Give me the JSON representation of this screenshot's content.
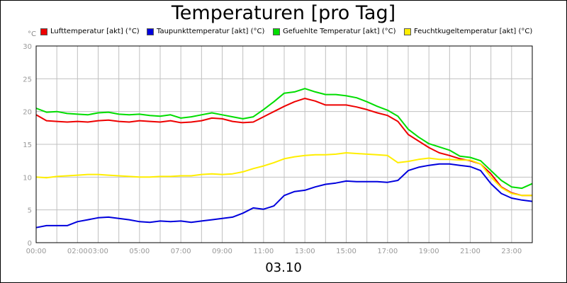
{
  "title": "Temperaturen [pro Tag]",
  "date_label": "03.10",
  "unit_label": "°C",
  "chart_data": {
    "type": "line",
    "title": "Temperaturen [pro Tag]",
    "ylabel": "°C",
    "xlabel": "03.10",
    "ylim": [
      0,
      30
    ],
    "xlim_hours": [
      0,
      24
    ],
    "grid": true,
    "legend_position": "top",
    "y_ticks": [
      "0",
      "5",
      "10",
      "15",
      "20",
      "25",
      "30"
    ],
    "x_ticks": [
      {
        "hour": 0,
        "label": "00:00"
      },
      {
        "hour": 2,
        "label": "02:00"
      },
      {
        "hour": 3,
        "label": "03:00"
      },
      {
        "hour": 5,
        "label": "05:00"
      },
      {
        "hour": 7,
        "label": "07:00"
      },
      {
        "hour": 9,
        "label": "09:00"
      },
      {
        "hour": 11,
        "label": "11:00"
      },
      {
        "hour": 13,
        "label": "13:00"
      },
      {
        "hour": 15,
        "label": "15:00"
      },
      {
        "hour": 17,
        "label": "17:00"
      },
      {
        "hour": 19,
        "label": "19:00"
      },
      {
        "hour": 21,
        "label": "21:00"
      },
      {
        "hour": 23,
        "label": "23:00"
      }
    ],
    "x_hours": [
      0,
      0.5,
      1,
      1.5,
      2,
      2.5,
      3,
      3.5,
      4,
      4.5,
      5,
      5.5,
      6,
      6.5,
      7,
      7.5,
      8,
      8.5,
      9,
      9.5,
      10,
      10.5,
      11,
      11.5,
      12,
      12.5,
      13,
      13.5,
      14,
      14.5,
      15,
      15.5,
      16,
      16.5,
      17,
      17.5,
      18,
      18.5,
      19,
      19.5,
      20,
      20.5,
      21,
      21.5,
      22,
      22.5,
      23,
      23.5,
      24
    ],
    "series": [
      {
        "name": "Lufttemperatur [akt] (°C)",
        "color": "#ee0000",
        "values": [
          19.5,
          18.6,
          18.5,
          18.4,
          18.5,
          18.4,
          18.6,
          18.7,
          18.5,
          18.4,
          18.6,
          18.5,
          18.4,
          18.6,
          18.3,
          18.4,
          18.6,
          19.0,
          18.9,
          18.5,
          18.3,
          18.4,
          19.2,
          20.0,
          20.8,
          21.5,
          22.0,
          21.6,
          21.0,
          21.0,
          21.0,
          20.7,
          20.3,
          19.8,
          19.4,
          18.5,
          16.5,
          15.5,
          14.5,
          13.7,
          13.3,
          12.8,
          12.5,
          12.0,
          10.5,
          8.5,
          7.6,
          7.2,
          7.2
        ]
      },
      {
        "name": "Taupunkttemperatur [akt] (°C)",
        "color": "#0000dd",
        "values": [
          2.3,
          2.6,
          2.6,
          2.6,
          3.2,
          3.5,
          3.8,
          3.9,
          3.7,
          3.5,
          3.2,
          3.1,
          3.3,
          3.2,
          3.3,
          3.1,
          3.3,
          3.5,
          3.7,
          3.9,
          4.5,
          5.3,
          5.1,
          5.6,
          7.2,
          7.8,
          8.0,
          8.5,
          8.9,
          9.1,
          9.4,
          9.3,
          9.3,
          9.3,
          9.2,
          9.5,
          11.0,
          11.5,
          11.8,
          12.0,
          12.0,
          11.8,
          11.6,
          11.0,
          9.0,
          7.5,
          6.8,
          6.5,
          6.3
        ]
      },
      {
        "name": "Gefuehlte Temperatur [akt] (°C)",
        "color": "#00dd00",
        "values": [
          20.5,
          19.9,
          20.0,
          19.7,
          19.6,
          19.5,
          19.8,
          19.9,
          19.6,
          19.5,
          19.6,
          19.4,
          19.3,
          19.5,
          19.0,
          19.2,
          19.5,
          19.8,
          19.5,
          19.2,
          18.9,
          19.2,
          20.3,
          21.5,
          22.8,
          23.0,
          23.5,
          23.0,
          22.6,
          22.6,
          22.4,
          22.1,
          21.5,
          20.8,
          20.2,
          19.3,
          17.3,
          16.1,
          15.1,
          14.6,
          14.1,
          13.2,
          13.0,
          12.5,
          11.0,
          9.5,
          8.5,
          8.3,
          9.0
        ]
      },
      {
        "name": "Feuchtkugeltemperatur [akt] (°C)",
        "color": "#ffee00",
        "values": [
          10.0,
          9.9,
          10.1,
          10.2,
          10.3,
          10.4,
          10.4,
          10.3,
          10.2,
          10.1,
          10.0,
          10.0,
          10.1,
          10.1,
          10.2,
          10.2,
          10.4,
          10.5,
          10.4,
          10.5,
          10.8,
          11.3,
          11.7,
          12.2,
          12.8,
          13.1,
          13.3,
          13.4,
          13.4,
          13.5,
          13.7,
          13.6,
          13.5,
          13.4,
          13.3,
          12.2,
          12.4,
          12.7,
          12.9,
          12.7,
          12.7,
          12.6,
          12.6,
          12.0,
          10.0,
          8.4,
          7.5,
          7.2,
          7.2
        ]
      }
    ]
  }
}
